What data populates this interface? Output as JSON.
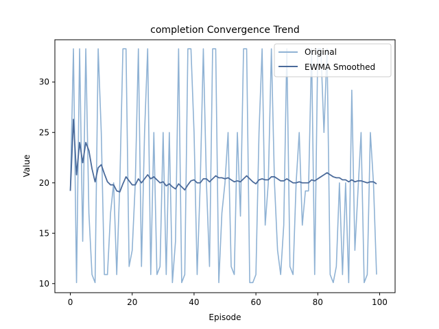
{
  "chart_data": {
    "type": "line",
    "title": "completion Convergence Trend",
    "xlabel": "Episode",
    "ylabel": "Value",
    "xlim": [
      -5,
      105
    ],
    "ylim": [
      9.1,
      34.2
    ],
    "xticks": [
      0,
      20,
      40,
      60,
      80,
      100
    ],
    "yticks": [
      10,
      15,
      20,
      25,
      30
    ],
    "grid": false,
    "legend_position": "top-right",
    "colors": {
      "original": "#8fb2d4",
      "smoothed": "#4a6a9a"
    },
    "series": [
      {
        "name": "Original",
        "x": [
          0,
          1,
          2,
          3,
          4,
          5,
          6,
          7,
          8,
          9,
          10,
          11,
          12,
          13,
          14,
          15,
          16,
          17,
          18,
          19,
          20,
          21,
          22,
          23,
          24,
          25,
          26,
          27,
          28,
          29,
          30,
          31,
          32,
          33,
          34,
          35,
          36,
          37,
          38,
          39,
          40,
          41,
          42,
          43,
          44,
          45,
          46,
          47,
          48,
          49,
          50,
          51,
          52,
          53,
          54,
          55,
          56,
          57,
          58,
          59,
          60,
          61,
          62,
          63,
          64,
          65,
          66,
          67,
          68,
          69,
          70,
          71,
          72,
          73,
          74,
          75,
          76,
          77,
          78,
          79,
          80,
          81,
          82,
          83,
          84,
          85,
          86,
          87,
          88,
          89,
          90,
          91,
          92,
          93,
          94,
          95,
          96,
          97,
          98,
          99
        ],
        "values": [
          19.2,
          33.3,
          10.1,
          33.3,
          14.2,
          33.3,
          17.0,
          10.9,
          10.1,
          33.3,
          25.0,
          10.9,
          10.9,
          17.0,
          20.0,
          10.9,
          20.0,
          33.3,
          33.3,
          11.7,
          13.3,
          20.0,
          33.3,
          11.7,
          25.0,
          33.3,
          10.9,
          25.0,
          10.9,
          11.7,
          25.0,
          10.9,
          25.0,
          10.1,
          14.2,
          33.3,
          10.1,
          10.9,
          33.3,
          33.3,
          25.0,
          10.9,
          20.0,
          33.3,
          20.0,
          11.7,
          33.3,
          33.3,
          10.1,
          17.0,
          20.0,
          25.0,
          11.7,
          10.9,
          25.0,
          16.7,
          33.3,
          33.3,
          10.1,
          10.1,
          10.9,
          25.0,
          33.3,
          15.8,
          20.0,
          33.3,
          20.0,
          13.3,
          10.9,
          15.8,
          33.3,
          11.7,
          10.9,
          20.0,
          25.0,
          15.8,
          19.2,
          19.2,
          33.3,
          10.9,
          33.3,
          33.3,
          25.0,
          33.3,
          10.9,
          10.1,
          11.7,
          20.0,
          10.9,
          20.0,
          10.1,
          29.2,
          13.3,
          19.2,
          25.0,
          10.1,
          10.9,
          25.0,
          20.0,
          10.9
        ]
      },
      {
        "name": "EWMA Smoothed",
        "x": [
          0,
          1,
          2,
          3,
          4,
          5,
          6,
          7,
          8,
          9,
          10,
          11,
          12,
          13,
          14,
          15,
          16,
          17,
          18,
          19,
          20,
          21,
          22,
          23,
          24,
          25,
          26,
          27,
          28,
          29,
          30,
          31,
          32,
          33,
          34,
          35,
          36,
          37,
          38,
          39,
          40,
          41,
          42,
          43,
          44,
          45,
          46,
          47,
          48,
          49,
          50,
          51,
          52,
          53,
          54,
          55,
          56,
          57,
          58,
          59,
          60,
          61,
          62,
          63,
          64,
          65,
          66,
          67,
          68,
          69,
          70,
          71,
          72,
          73,
          74,
          75,
          76,
          77,
          78,
          79,
          80,
          81,
          82,
          83,
          84,
          85,
          86,
          87,
          88,
          89,
          90,
          91,
          92,
          93,
          94,
          95,
          96,
          97,
          98,
          99
        ],
        "values": [
          19.2,
          26.3,
          20.8,
          24.0,
          22.0,
          24.0,
          23.2,
          21.4,
          20.1,
          21.5,
          21.8,
          20.9,
          20.1,
          19.8,
          19.8,
          19.2,
          19.1,
          19.9,
          20.6,
          20.2,
          19.8,
          19.8,
          20.4,
          20.0,
          20.4,
          20.8,
          20.4,
          20.6,
          20.3,
          20.0,
          20.1,
          19.7,
          19.9,
          19.6,
          19.4,
          19.9,
          19.6,
          19.3,
          19.8,
          20.2,
          20.3,
          20.0,
          20.0,
          20.4,
          20.4,
          20.1,
          20.4,
          20.7,
          20.5,
          20.5,
          20.4,
          20.5,
          20.3,
          20.1,
          20.2,
          20.1,
          20.4,
          20.7,
          20.4,
          20.1,
          19.9,
          20.3,
          20.4,
          20.3,
          20.3,
          20.6,
          20.6,
          20.4,
          20.2,
          20.2,
          20.4,
          20.2,
          20.0,
          20.0,
          20.1,
          20.0,
          20.0,
          20.0,
          20.3,
          20.2,
          20.4,
          20.6,
          20.8,
          21.0,
          20.8,
          20.6,
          20.5,
          20.5,
          20.3,
          20.3,
          20.1,
          20.3,
          20.1,
          20.2,
          20.2,
          20.1,
          20.0,
          20.1,
          20.1,
          19.9
        ]
      }
    ]
  }
}
